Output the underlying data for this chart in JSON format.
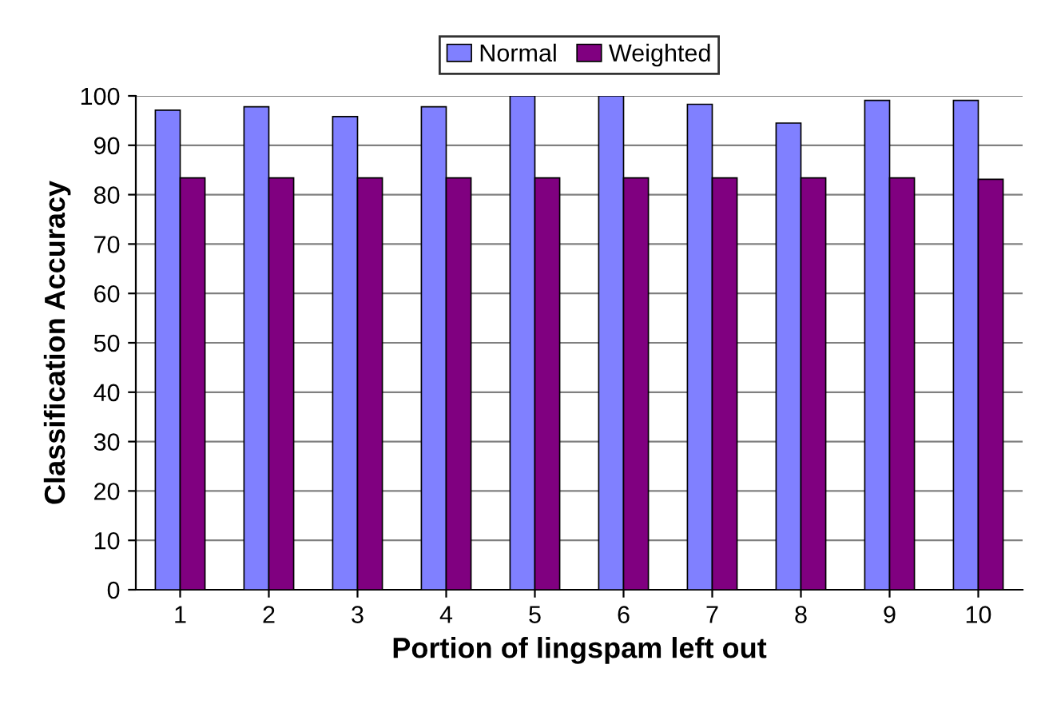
{
  "chart_data": {
    "type": "bar",
    "xlabel": "Portion of lingspam left out",
    "ylabel": "Classification Accuracy",
    "categories": [
      "1",
      "2",
      "3",
      "4",
      "5",
      "6",
      "7",
      "8",
      "9",
      "10"
    ],
    "series": [
      {
        "name": "Normal",
        "color": "#8080ff",
        "values": [
          97.1,
          97.8,
          95.8,
          97.8,
          100,
          100,
          98.3,
          94.5,
          99.1,
          99.1
        ]
      },
      {
        "name": "Weighted",
        "color": "#800080",
        "values": [
          83.4,
          83.4,
          83.4,
          83.4,
          83.4,
          83.4,
          83.4,
          83.4,
          83.4,
          83.1
        ]
      }
    ],
    "ylim": [
      0,
      100
    ],
    "yticks": [
      0,
      10,
      20,
      30,
      40,
      50,
      60,
      70,
      80,
      90,
      100
    ],
    "grid": "y",
    "legend": "top"
  }
}
